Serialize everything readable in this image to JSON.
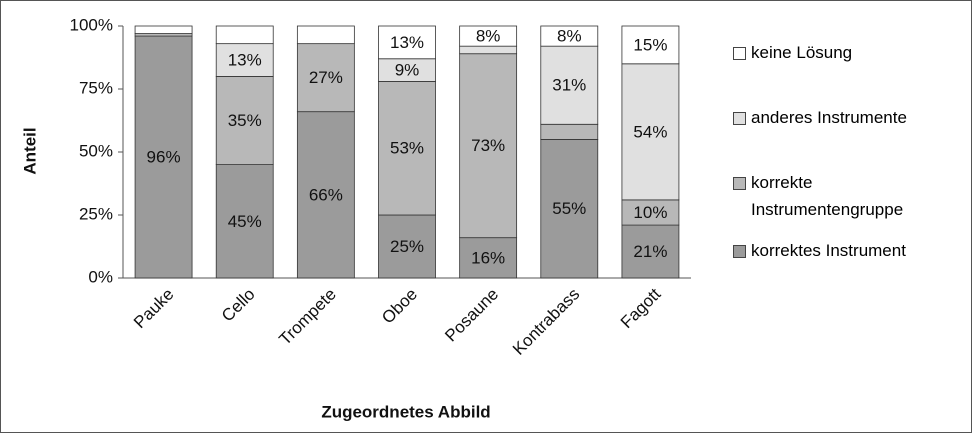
{
  "chart_data": {
    "type": "stacked_bar",
    "x_label": "Zugeordnetes Abbild",
    "y_label": "Anteil",
    "categories": [
      "Pauke",
      "Cello",
      "Trompete",
      "Oboe",
      "Posaune",
      "Kontrabass",
      "Fagott"
    ],
    "series": [
      {
        "name": "korrektes Instrument",
        "color": "#9b9b9b",
        "values": [
          96,
          45,
          66,
          25,
          16,
          55,
          21
        ],
        "value_labels": [
          "96%",
          "45%",
          "66%",
          "25%",
          "16%",
          "55%",
          "21%"
        ]
      },
      {
        "name": "korrekte Instrumentengruppe",
        "color": "#b8b8b8",
        "values": [
          1,
          35,
          27,
          53,
          73,
          6,
          10
        ],
        "value_labels": [
          null,
          "35%",
          "27%",
          "53%",
          "73%",
          null,
          "10%"
        ]
      },
      {
        "name": "anderes Instrumente",
        "color": "#e0e0e0",
        "values": [
          0,
          13,
          0,
          9,
          3,
          31,
          54
        ],
        "value_labels": [
          null,
          "13%",
          null,
          "9%",
          null,
          "31%",
          "54%"
        ]
      },
      {
        "name": "keine Lösung",
        "color": "#ffffff",
        "values": [
          3,
          7,
          7,
          13,
          8,
          8,
          15
        ],
        "value_labels": [
          null,
          null,
          null,
          "13%",
          "8%",
          "8%",
          "15%"
        ]
      }
    ],
    "ylim": [
      0,
      100
    ],
    "yticks": [
      {
        "value": 0,
        "label": "0%"
      },
      {
        "value": 25,
        "label": "25%"
      },
      {
        "value": 50,
        "label": "50%"
      },
      {
        "value": 75,
        "label": "75%"
      },
      {
        "value": 100,
        "label": "100%"
      }
    ],
    "grid": false
  }
}
